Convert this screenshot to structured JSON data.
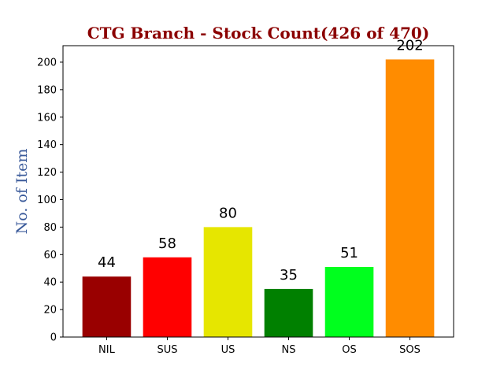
{
  "chart_data": {
    "type": "bar",
    "title": "CTG Branch - Stock Count(426 of 470)",
    "title_color": "#8b0000",
    "xlabel": "",
    "ylabel": "No. of Item",
    "ylabel_color": "#3a5a9a",
    "categories": [
      "NIL",
      "SUS",
      "US",
      "NS",
      "OS",
      "SOS"
    ],
    "values": [
      44,
      58,
      80,
      35,
      51,
      202
    ],
    "data_labels": [
      "44",
      "58",
      "80",
      "35",
      "51",
      "202"
    ],
    "colors": [
      "#990000",
      "#ff0000",
      "#e6e600",
      "#008000",
      "#00ff1e",
      "#ff8c00"
    ],
    "ylim": [
      0,
      212
    ],
    "yticks": [
      0,
      20,
      40,
      60,
      80,
      100,
      120,
      140,
      160,
      180,
      200
    ],
    "grid": false,
    "legend": "none"
  }
}
